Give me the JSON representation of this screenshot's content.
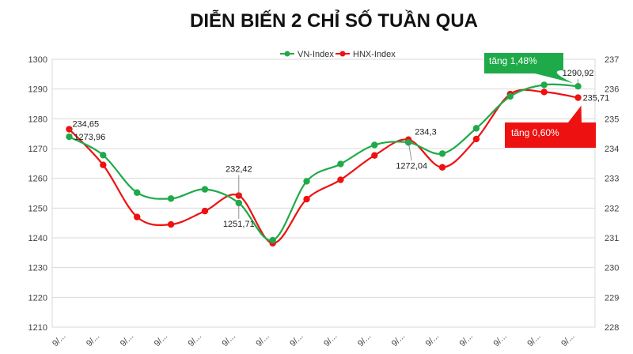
{
  "chart_data": {
    "type": "line",
    "title": "DIỄN BIẾN 2 CHỈ SỐ TUẦN QUA",
    "categories": [
      "9/...",
      "9/...",
      "9/...",
      "9/...",
      "9/...",
      "9/...",
      "9/...",
      "9/...",
      "9/...",
      "9/...",
      "9/...",
      "9/...",
      "9/...",
      "9/...",
      "9/...",
      "9/..."
    ],
    "y_left": {
      "min": 1210,
      "max": 1300,
      "step": 10,
      "ticks": [
        "1210",
        "1220",
        "1230",
        "1240",
        "1250",
        "1260",
        "1270",
        "1280",
        "1290",
        "1300"
      ]
    },
    "y_right": {
      "min": 228,
      "max": 237,
      "step": 1,
      "ticks": [
        "228",
        "229",
        "230",
        "231",
        "232",
        "233",
        "234",
        "235",
        "236",
        "237"
      ]
    },
    "grid": true,
    "legend_position": "top",
    "series": [
      {
        "name": "VN-Index",
        "axis": "left",
        "color": "#1faa4a",
        "values": [
          1273.96,
          1267.8,
          1255.2,
          1253.2,
          1256.3,
          1251.71,
          1239.2,
          1259.0,
          1264.8,
          1271.2,
          1272.04,
          1268.3,
          1276.8,
          1287.5,
          1291.4,
          1290.92
        ]
      },
      {
        "name": "HNX-Index",
        "axis": "right",
        "color": "#ee1111",
        "values": [
          234.65,
          233.45,
          231.7,
          231.45,
          231.9,
          232.42,
          230.82,
          232.3,
          232.95,
          233.77,
          234.3,
          233.37,
          234.32,
          235.83,
          235.9,
          235.71
        ]
      }
    ],
    "data_labels": [
      {
        "series": 1,
        "index": 0,
        "text": "234,65"
      },
      {
        "series": 0,
        "index": 0,
        "text": "1273,96"
      },
      {
        "series": 1,
        "index": 5,
        "text": "232,42"
      },
      {
        "series": 0,
        "index": 5,
        "text": "1251,71"
      },
      {
        "series": 1,
        "index": 10,
        "text": "234,3"
      },
      {
        "series": 0,
        "index": 10,
        "text": "1272,04"
      },
      {
        "series": 0,
        "index": 15,
        "text": "1290,92"
      },
      {
        "series": 1,
        "index": 15,
        "text": "235,71"
      }
    ],
    "callouts": [
      {
        "text": "tăng 1,48%",
        "color": "#1faa4a",
        "series": 0
      },
      {
        "text": "tăng 0,60%",
        "color": "#ee1111",
        "series": 1
      }
    ]
  }
}
